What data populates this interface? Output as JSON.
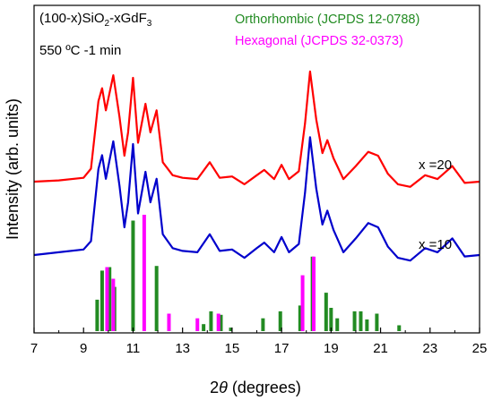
{
  "chart_data": {
    "type": "line",
    "title": "",
    "annotations": {
      "composition_prefix": "(100-x)SiO",
      "composition_sub1": "2",
      "composition_mid": "-xGdF",
      "composition_sub2": "3",
      "condition": "550 ºC -1 min"
    },
    "xlabel_prefix": "2",
    "xlabel_theta": "θ",
    "xlabel_suffix": " (degrees)",
    "ylabel": "Intensity (arb. units)",
    "xlim": [
      7,
      25
    ],
    "xticks": [
      "7",
      "9",
      "11",
      "13",
      "15",
      "17",
      "19",
      "21",
      "23",
      "25"
    ],
    "grid": false,
    "legend_position": "top-right",
    "legend": [
      {
        "label": "Orthorhombic (JCPDS 12-0788)",
        "color": "#228B22"
      },
      {
        "label": "Hexagonal (JCPDS 32-0373)",
        "color": "#ff00ff"
      }
    ],
    "series": [
      {
        "name": "x =20",
        "color": "#ff0000",
        "points": [
          [
            7,
            0.0
          ],
          [
            8,
            0.01
          ],
          [
            9,
            0.03
          ],
          [
            9.3,
            0.1
          ],
          [
            9.6,
            0.62
          ],
          [
            9.75,
            0.72
          ],
          [
            9.9,
            0.55
          ],
          [
            10.2,
            0.82
          ],
          [
            10.45,
            0.5
          ],
          [
            10.65,
            0.2
          ],
          [
            10.8,
            0.38
          ],
          [
            11.0,
            0.8
          ],
          [
            11.2,
            0.3
          ],
          [
            11.5,
            0.6
          ],
          [
            11.7,
            0.38
          ],
          [
            11.95,
            0.55
          ],
          [
            12.2,
            0.15
          ],
          [
            12.6,
            0.05
          ],
          [
            13.0,
            0.03
          ],
          [
            13.6,
            0.02
          ],
          [
            14.1,
            0.15
          ],
          [
            14.5,
            0.03
          ],
          [
            15.0,
            0.04
          ],
          [
            15.5,
            -0.02
          ],
          [
            16.0,
            0.05
          ],
          [
            16.3,
            0.09
          ],
          [
            16.7,
            0.02
          ],
          [
            17.0,
            0.13
          ],
          [
            17.3,
            0.02
          ],
          [
            17.7,
            0.08
          ],
          [
            17.95,
            0.45
          ],
          [
            18.15,
            0.85
          ],
          [
            18.4,
            0.48
          ],
          [
            18.65,
            0.22
          ],
          [
            18.85,
            0.32
          ],
          [
            19.1,
            0.18
          ],
          [
            19.5,
            0.02
          ],
          [
            20.0,
            0.12
          ],
          [
            20.5,
            0.23
          ],
          [
            20.9,
            0.2
          ],
          [
            21.3,
            0.06
          ],
          [
            21.7,
            -0.02
          ],
          [
            22.2,
            -0.04
          ],
          [
            22.8,
            0.05
          ],
          [
            23.3,
            0.02
          ],
          [
            23.9,
            0.12
          ],
          [
            24.4,
            -0.01
          ],
          [
            25,
            0.0
          ]
        ]
      },
      {
        "name": "x =10",
        "color": "#0000cc",
        "points": [
          [
            7,
            0.0
          ],
          [
            8,
            0.02
          ],
          [
            9,
            0.04
          ],
          [
            9.3,
            0.1
          ],
          [
            9.6,
            0.62
          ],
          [
            9.75,
            0.72
          ],
          [
            9.9,
            0.55
          ],
          [
            10.2,
            0.82
          ],
          [
            10.45,
            0.5
          ],
          [
            10.65,
            0.2
          ],
          [
            10.8,
            0.38
          ],
          [
            11.0,
            0.8
          ],
          [
            11.2,
            0.3
          ],
          [
            11.5,
            0.6
          ],
          [
            11.7,
            0.38
          ],
          [
            11.95,
            0.55
          ],
          [
            12.2,
            0.15
          ],
          [
            12.6,
            0.05
          ],
          [
            13.0,
            0.03
          ],
          [
            13.6,
            0.02
          ],
          [
            14.1,
            0.15
          ],
          [
            14.5,
            0.03
          ],
          [
            15.0,
            0.04
          ],
          [
            15.5,
            -0.02
          ],
          [
            16.0,
            0.05
          ],
          [
            16.3,
            0.09
          ],
          [
            16.7,
            0.02
          ],
          [
            17.0,
            0.13
          ],
          [
            17.3,
            0.02
          ],
          [
            17.7,
            0.08
          ],
          [
            17.95,
            0.45
          ],
          [
            18.15,
            0.85
          ],
          [
            18.4,
            0.48
          ],
          [
            18.65,
            0.22
          ],
          [
            18.85,
            0.32
          ],
          [
            19.1,
            0.18
          ],
          [
            19.5,
            0.02
          ],
          [
            20.0,
            0.12
          ],
          [
            20.5,
            0.23
          ],
          [
            20.9,
            0.2
          ],
          [
            21.3,
            0.06
          ],
          [
            21.7,
            -0.02
          ],
          [
            22.2,
            -0.04
          ],
          [
            22.8,
            0.05
          ],
          [
            23.3,
            0.02
          ],
          [
            23.9,
            0.12
          ],
          [
            24.4,
            -0.01
          ],
          [
            25,
            0.0
          ]
        ]
      }
    ],
    "reference_lines": {
      "Orthorhombic (JCPDS 12-0788)": {
        "color": "#228B22",
        "positions": [
          9.55,
          9.75,
          10.05,
          10.25,
          11.0,
          11.95,
          13.85,
          14.15,
          14.55,
          14.95,
          16.25,
          16.95,
          17.75,
          18.25,
          18.8,
          19.0,
          19.25,
          19.95,
          20.2,
          20.45,
          20.85,
          21.75
        ],
        "relative_intensity": [
          0.27,
          0.52,
          0.55,
          0.38,
          0.95,
          0.56,
          0.06,
          0.17,
          0.14,
          0.03,
          0.11,
          0.17,
          0.22,
          0.64,
          0.33,
          0.2,
          0.11,
          0.17,
          0.17,
          0.1,
          0.15,
          0.05
        ]
      },
      "Hexagonal (JCPDS 32-0373)": {
        "color": "#ff00ff",
        "positions": [
          9.95,
          10.2,
          11.45,
          12.45,
          13.6,
          14.45,
          17.85,
          18.3
        ],
        "relative_intensity": [
          0.55,
          0.45,
          1.0,
          0.15,
          0.11,
          0.15,
          0.48,
          0.64
        ]
      }
    }
  }
}
